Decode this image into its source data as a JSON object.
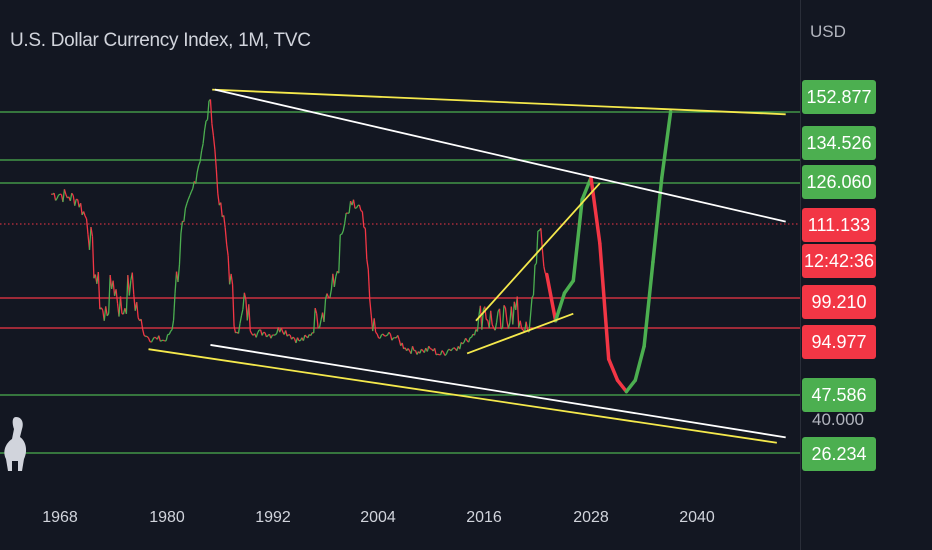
{
  "header": {
    "title": "U.S. Dollar Currency Index, 1M, TVC",
    "currency": "USD"
  },
  "colors": {
    "background": "#131722",
    "up": "#4caf50",
    "down": "#f23645",
    "trendline_yellow": "#f5e94c",
    "trendline_white": "#ffffff",
    "level_green": "#4caf50",
    "level_red": "#f23645"
  },
  "price_axis": {
    "labels": [
      {
        "value": "152.877",
        "color": "#4caf50"
      },
      {
        "value": "134.526",
        "color": "#4caf50"
      },
      {
        "value": "126.060",
        "color": "#4caf50"
      },
      {
        "value": "111.133",
        "color": "#f23645"
      },
      {
        "value": "12:42:36",
        "color": "#f23645"
      },
      {
        "value": "99.210",
        "color": "#f23645"
      },
      {
        "value": "94.977",
        "color": "#f23645"
      },
      {
        "value": "47.586",
        "color": "#4caf50"
      },
      {
        "value": "26.234",
        "color": "#4caf50"
      }
    ],
    "plain_tick": "40.000"
  },
  "chart_data": {
    "type": "line",
    "title": "U.S. Dollar Currency Index, 1M, TVC",
    "xlabel": "",
    "ylabel": "",
    "x_ticks": [
      "1968",
      "1980",
      "1992",
      "2004",
      "2016",
      "2028",
      "2040"
    ],
    "xlim": [
      1962.5,
      2053
    ],
    "grid": false,
    "horizontal_levels": [
      {
        "value": 152.877,
        "color": "green"
      },
      {
        "value": 134.526,
        "color": "green"
      },
      {
        "value": 126.06,
        "color": "green"
      },
      {
        "value": 111.133,
        "color": "red",
        "style": "dotted"
      },
      {
        "value": 99.21,
        "color": "red"
      },
      {
        "value": 94.977,
        "color": "red"
      },
      {
        "value": 47.586,
        "color": "green"
      },
      {
        "value": 26.234,
        "color": "green"
      }
    ],
    "historical_series": {
      "name": "",
      "x": [
        1967,
        1968,
        1969,
        1970,
        1971,
        1972,
        1973,
        1974,
        1975,
        1976,
        1977,
        1978,
        1979,
        1980,
        1981,
        1982,
        1983,
        1984,
        1985,
        1986,
        1987,
        1988,
        1989,
        1990,
        1991,
        1992,
        1993,
        1994,
        1995,
        1996,
        1997,
        1998,
        1999,
        2000,
        2001,
        2002,
        2003,
        2004,
        2005,
        2006,
        2007,
        2008,
        2009,
        2010,
        2011,
        2012,
        2013,
        2014,
        2015,
        2016,
        2017,
        2018,
        2019,
        2020,
        2021,
        2022,
        2023
      ],
      "y": [
        122,
        122,
        121,
        120,
        113,
        103,
        96,
        102,
        97,
        102,
        96,
        88,
        87,
        86,
        100,
        112,
        124,
        138,
        158,
        118,
        106,
        92,
        99,
        91,
        92,
        90,
        95,
        90,
        86,
        88,
        97,
        99,
        101,
        110,
        118,
        116,
        99,
        88,
        90,
        88,
        81,
        79,
        79,
        80,
        76,
        80,
        82,
        86,
        94,
        98,
        95,
        95,
        98,
        96,
        92,
        110,
        103
      ]
    },
    "projection_series": {
      "name": "",
      "x": [
        2023,
        2024,
        2025,
        2026,
        2027,
        2028,
        2029,
        2030,
        2031,
        2032,
        2033,
        2034,
        2035,
        2036,
        2037
      ],
      "y": [
        103,
        96,
        100,
        102,
        120,
        128,
        108,
        73,
        58,
        50,
        58,
        82,
        105,
        128,
        153
      ]
    },
    "trendlines": [
      {
        "color": "yellow",
        "points": [
          [
            1985.2,
            162
          ],
          [
            2050,
            152
          ]
        ]
      },
      {
        "color": "white",
        "points": [
          [
            1985.5,
            162
          ],
          [
            2050,
            112
          ]
        ]
      },
      {
        "color": "white",
        "points": [
          [
            1985,
            83
          ],
          [
            2050,
            32
          ]
        ]
      },
      {
        "color": "yellow",
        "points": [
          [
            1978,
            80
          ],
          [
            2049,
            30
          ]
        ]
      },
      {
        "color": "yellow",
        "points": [
          [
            2015,
            96
          ],
          [
            2029,
            126
          ]
        ]
      },
      {
        "color": "yellow",
        "points": [
          [
            2014,
            77
          ],
          [
            2026,
            97
          ]
        ]
      }
    ]
  }
}
